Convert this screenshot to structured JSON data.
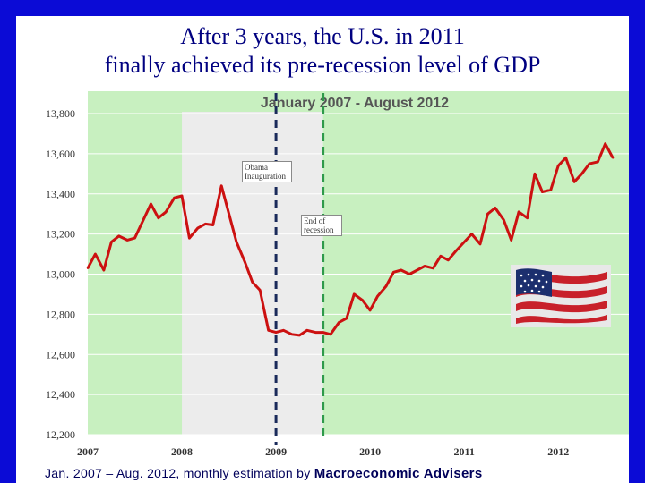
{
  "title": {
    "line1": "After 3 years, the U.S. in 2011",
    "line2": "finally achieved its pre-recession level of GDP"
  },
  "footer": {
    "prefix": "Jan. 2007 – Aug. 2012, monthly estimation by ",
    "source": "Macroeconomic Advisers"
  },
  "annotations": {
    "obama": "Obama Inauguration",
    "end_recession": "End of recession"
  },
  "colors": {
    "frame": "#0b0bd6",
    "plot_bg": "#c8f0c0",
    "recession_shade": "#ececec",
    "line": "#cc1111",
    "obama_marker": "#1a2a5a",
    "end_marker": "#2e9a4a"
  },
  "icons": {
    "flag": "us-flag-icon"
  },
  "chart_data": {
    "type": "line",
    "title": "January 2007 - August 2012",
    "xlabel": "",
    "ylabel": "",
    "ylim": [
      12200,
      13800
    ],
    "yticks": [
      12200,
      12400,
      12600,
      12800,
      13000,
      13200,
      13400,
      13600,
      13800
    ],
    "ytick_labels": [
      "12,200",
      "12,400",
      "12,600",
      "12,800",
      "13,000",
      "13,200",
      "13,400",
      "13,600",
      "13,800"
    ],
    "xticks": [
      2007,
      2008,
      2009,
      2010,
      2011,
      2012
    ],
    "xtick_labels": [
      "2007",
      "2008",
      "2009",
      "2010",
      "2011",
      "2012"
    ],
    "xlim": [
      2007,
      2012.75
    ],
    "grid": true,
    "recession_span": [
      2008.0,
      2009.5
    ],
    "markers": {
      "obama_inauguration": 2009.0,
      "end_of_recession": 2009.5
    },
    "series": [
      {
        "x": [
          2007.0,
          2007.08,
          2007.17,
          2007.25,
          2007.33,
          2007.42,
          2007.5,
          2007.58,
          2007.67,
          2007.75,
          2007.83,
          2007.92,
          2008.0,
          2008.08,
          2008.17,
          2008.25,
          2008.33,
          2008.42,
          2008.5,
          2008.58,
          2008.67,
          2008.75,
          2008.83,
          2008.92,
          2009.0,
          2009.08,
          2009.17,
          2009.25,
          2009.33,
          2009.42,
          2009.5,
          2009.58,
          2009.67,
          2009.75,
          2009.83,
          2009.92,
          2010.0,
          2010.08,
          2010.17,
          2010.25,
          2010.33,
          2010.42,
          2010.5,
          2010.58,
          2010.67,
          2010.75,
          2010.83,
          2010.92,
          2011.0,
          2011.08,
          2011.17,
          2011.25,
          2011.33,
          2011.42,
          2011.5,
          2011.58,
          2011.67,
          2011.75,
          2011.83,
          2011.92,
          2012.0,
          2012.08,
          2012.17,
          2012.25,
          2012.33,
          2012.42,
          2012.5,
          2012.58
        ],
        "values": [
          13030,
          13100,
          13020,
          13160,
          13190,
          13170,
          13180,
          13260,
          13350,
          13280,
          13310,
          13380,
          13390,
          13180,
          13230,
          13250,
          13245,
          13440,
          13300,
          13160,
          13060,
          12960,
          12920,
          12720,
          12710,
          12720,
          12700,
          12695,
          12720,
          12710,
          12710,
          12700,
          12760,
          12780,
          12900,
          12870,
          12820,
          12890,
          12940,
          13010,
          13020,
          13000,
          13020,
          13040,
          13030,
          13090,
          13070,
          13120,
          13160,
          13200,
          13150,
          13300,
          13330,
          13270,
          13170,
          13310,
          13280,
          13500,
          13410,
          13420,
          13540,
          13580,
          13460,
          13500,
          13550,
          13560,
          13650,
          13580
        ]
      }
    ]
  }
}
